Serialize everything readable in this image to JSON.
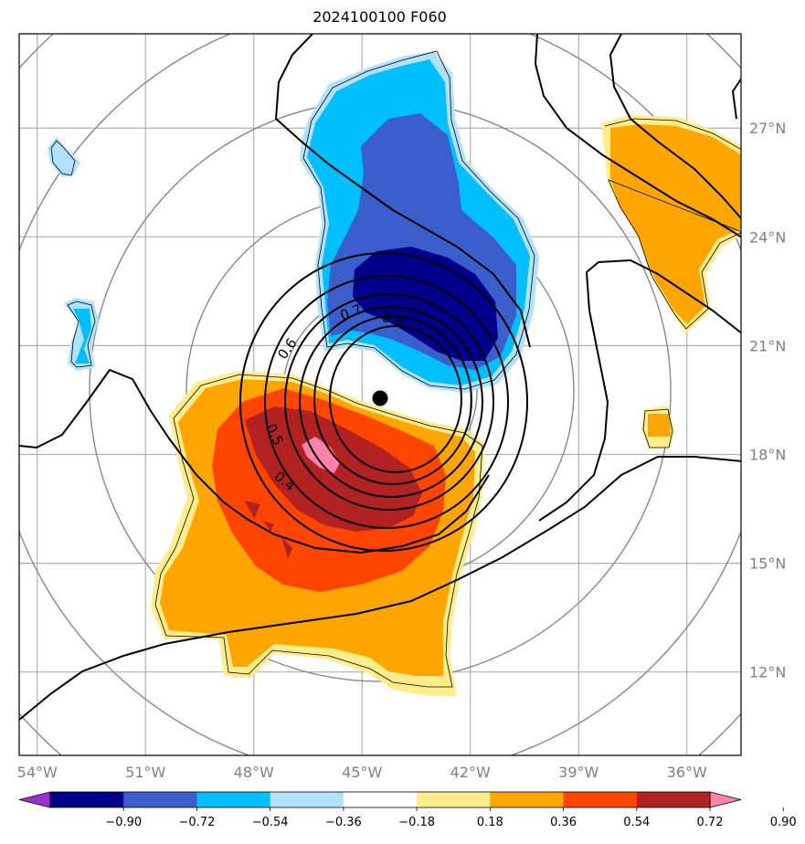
{
  "title": "2024100100 F060",
  "map": {
    "lon_range": [
      -54.5,
      -34.5
    ],
    "lat_range": [
      9.7,
      29.6
    ],
    "lon_ticks": [
      "54°W",
      "51°W",
      "48°W",
      "45°W",
      "42°W",
      "39°W",
      "36°W"
    ],
    "lon_values": [
      -54,
      -51,
      -48,
      -45,
      -42,
      -39,
      -36
    ],
    "lat_ticks": [
      "12°N",
      "15°N",
      "18°N",
      "21°N",
      "24°N",
      "27°N"
    ],
    "lat_values": [
      12,
      15,
      18,
      21,
      24,
      27
    ],
    "center": {
      "lon": -44.5,
      "lat": 19.55
    },
    "range_rings_count": 5,
    "contour_labels": [
      "0.7",
      "0.8",
      "0.6",
      "0.5",
      "0.4"
    ]
  },
  "colorbar": {
    "ticks": [
      "−0.90",
      "−0.72",
      "−0.54",
      "−0.36",
      "−0.18",
      "0.18",
      "0.36",
      "0.54",
      "0.72",
      "0.90"
    ],
    "colors": [
      "#9932cc",
      "#00008b",
      "#3a5fcd",
      "#00bfff",
      "#b0e2ff",
      "#ffffff",
      "#ffec8b",
      "#ffa500",
      "#ff4500",
      "#b22222",
      "#ff82ab"
    ],
    "extend": "both"
  }
}
